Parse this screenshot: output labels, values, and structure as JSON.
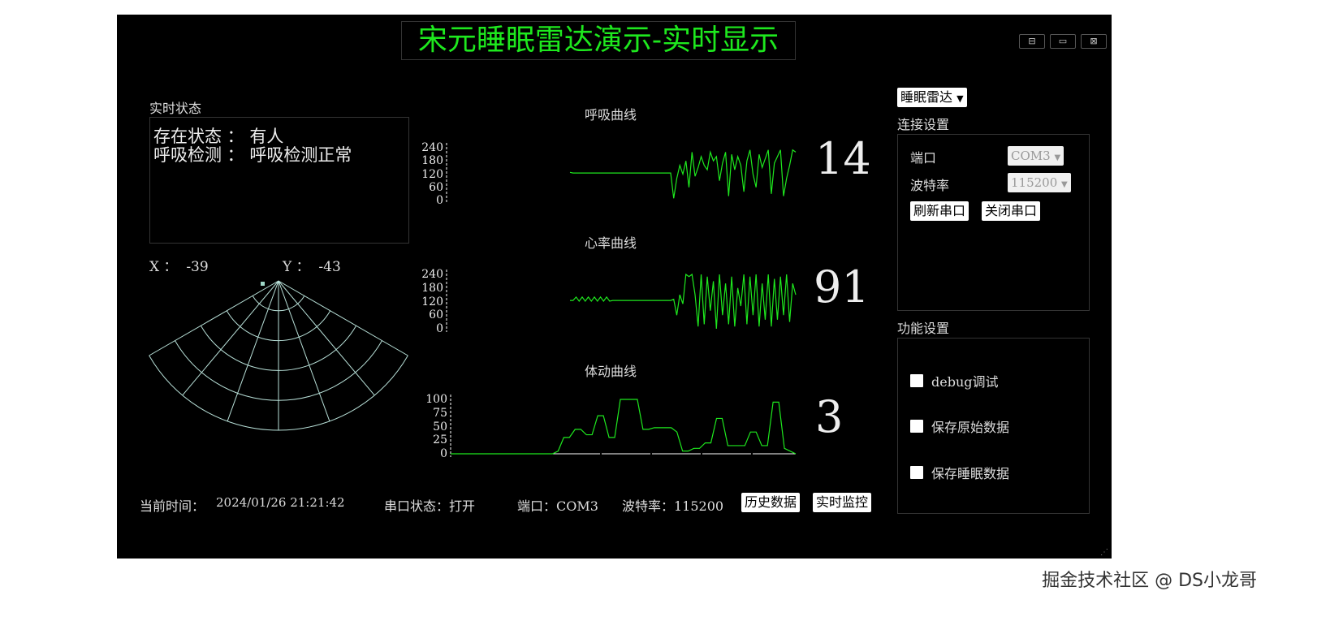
{
  "title": "宋元睡眠雷达演示-实时显示",
  "window_buttons": {
    "minimize": "⊟",
    "maximize": "▭",
    "close": "⊠"
  },
  "status": {
    "label": "实时状态",
    "line1": "存在状态 ： 有人",
    "line2": "呼吸检测 ： 呼吸检测正常"
  },
  "coords": {
    "x": "X ：  -39",
    "y": "Y ：  -43"
  },
  "charts": {
    "breath_title": "呼吸曲线",
    "heart_title": "心率曲线",
    "body_title": "体动曲线",
    "breath_value": "14",
    "heart_value": "91",
    "body_value": "3"
  },
  "chart_data": [
    {
      "type": "line",
      "title": "呼吸曲线",
      "ylim": [
        0,
        240
      ],
      "yticks": [
        "240",
        "180",
        "120",
        "60",
        "0"
      ],
      "color": "#1ee81e",
      "values": [
        128,
        125,
        125,
        125,
        125,
        125,
        125,
        125,
        125,
        125,
        125,
        125,
        125,
        125,
        125,
        125,
        125,
        125,
        125,
        125,
        125,
        125,
        125,
        125,
        125,
        125,
        125,
        125,
        125,
        125,
        125,
        125,
        125,
        125,
        10,
        100,
        160,
        120,
        180,
        60,
        220,
        110,
        150,
        200,
        160,
        140,
        220,
        180,
        200,
        90,
        170,
        220,
        20,
        210,
        140,
        200,
        160,
        40,
        180,
        230,
        120,
        60,
        210,
        150,
        190,
        230,
        30,
        170,
        200,
        230,
        20,
        100,
        160,
        230,
        220
      ]
    },
    {
      "type": "line",
      "title": "心率曲线",
      "ylim": [
        0,
        240
      ],
      "yticks": [
        "240",
        "180",
        "120",
        "60",
        "0"
      ],
      "color": "#1ee81e",
      "values": [
        125,
        125,
        140,
        122,
        140,
        122,
        140,
        122,
        140,
        122,
        140,
        122,
        140,
        122,
        125,
        125,
        125,
        125,
        125,
        125,
        125,
        125,
        125,
        125,
        125,
        125,
        125,
        125,
        125,
        125,
        125,
        125,
        125,
        125,
        130,
        60,
        150,
        110,
        240,
        230,
        240,
        150,
        10,
        240,
        20,
        230,
        80,
        210,
        0,
        240,
        60,
        200,
        20,
        230,
        10,
        180,
        100,
        240,
        20,
        230,
        60,
        240,
        10,
        200,
        40,
        240,
        10,
        220,
        40,
        230,
        60,
        240,
        30,
        200,
        150
      ]
    },
    {
      "type": "line",
      "title": "体动曲线",
      "ylim": [
        0,
        100
      ],
      "yticks": [
        "100",
        "75",
        "50",
        "25",
        "0"
      ],
      "color": "#1ee81e",
      "values": [
        0,
        0,
        0,
        0,
        0,
        0,
        0,
        0,
        0,
        0,
        0,
        0,
        0,
        0,
        0,
        0,
        0,
        0,
        0,
        5,
        30,
        30,
        45,
        45,
        35,
        35,
        70,
        70,
        30,
        30,
        100,
        100,
        100,
        100,
        45,
        45,
        48,
        48,
        48,
        48,
        40,
        5,
        5,
        10,
        10,
        20,
        20,
        65,
        65,
        15,
        15,
        15,
        15,
        40,
        40,
        15,
        15,
        95,
        95,
        10,
        5,
        0
      ]
    }
  ],
  "device_select": "睡眠雷达",
  "connection": {
    "label": "连接设置",
    "port_label": "端口",
    "port_value": "COM3",
    "baud_label": "波特率",
    "baud_value": "115200",
    "refresh_btn": "刷新串口",
    "close_btn": "关闭串口"
  },
  "functions": {
    "label": "功能设置",
    "items": [
      "debug调试",
      "保存原始数据",
      "保存睡眠数据"
    ]
  },
  "footer": {
    "time_label": "当前时间：",
    "time_value": "2024/01/26 21:21:42",
    "serial_status": "串口状态：打开",
    "port": "端口：COM3",
    "baud": "波特率：115200",
    "history_btn": "历史数据",
    "realtime_btn": "实时监控"
  },
  "watermark": "掘金技术社区 @ DS小龙哥"
}
